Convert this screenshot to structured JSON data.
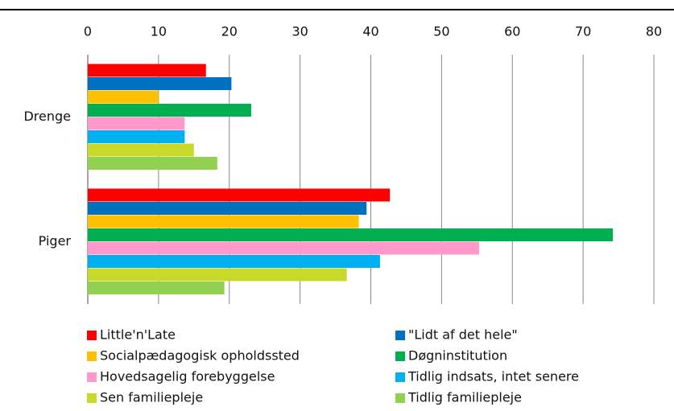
{
  "chart_data": {
    "type": "barh",
    "categories": [
      "Drenge",
      "Piger"
    ],
    "series": [
      {
        "name": "Little'n'Late",
        "color": "#ff0000",
        "values": [
          16.7,
          42.7
        ]
      },
      {
        "name": "\"Lidt af det hele\"",
        "color": "#0070c0",
        "values": [
          20.3,
          39.4
        ]
      },
      {
        "name": "Socialpædagogisk opholdssted",
        "color": "#ffc000",
        "values": [
          10.0,
          38.3
        ]
      },
      {
        "name": "Døgninstitution",
        "color": "#00b050",
        "values": [
          23.1,
          74.2
        ]
      },
      {
        "name": "Hovedsagelig forebyggelse",
        "color": "#ff99cc",
        "values": [
          13.7,
          55.3
        ]
      },
      {
        "name": "Tidlig indsats, intet senere",
        "color": "#00b0f0",
        "values": [
          13.7,
          41.3
        ]
      },
      {
        "name": "Sen familiepleje",
        "color": "#c8d92a",
        "values": [
          15.0,
          36.6
        ]
      },
      {
        "name": "Tidlig familiepleje",
        "color": "#92d050",
        "values": [
          18.3,
          19.3
        ]
      }
    ],
    "xlim": [
      0,
      80
    ],
    "xticks": [
      0,
      10,
      20,
      30,
      40,
      50,
      60,
      70,
      80
    ],
    "grid": true
  }
}
